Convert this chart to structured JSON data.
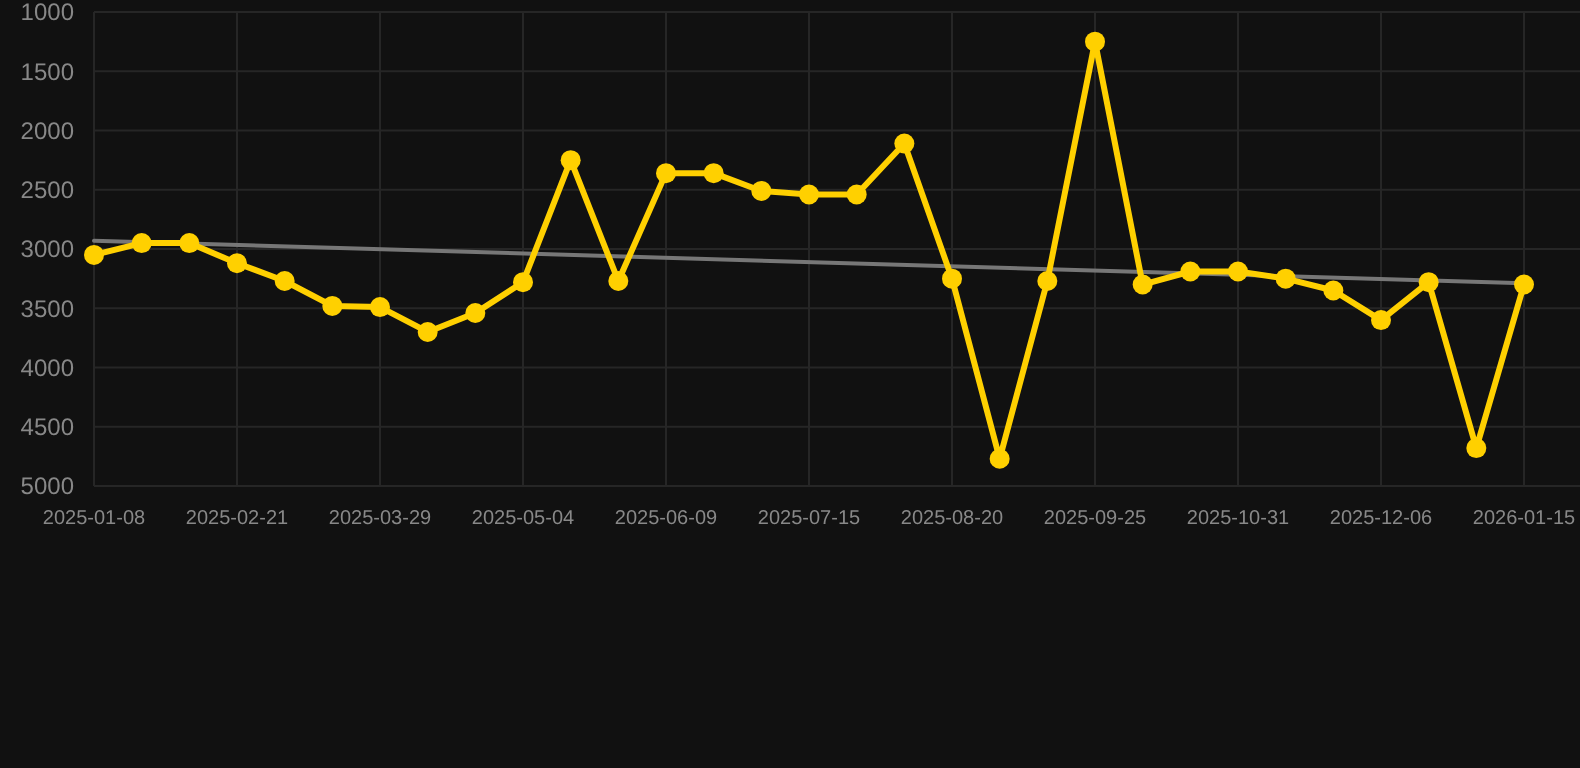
{
  "chart_data": {
    "type": "line",
    "categories": [
      "2025-01-08",
      null,
      null,
      "2025-02-21",
      null,
      null,
      "2025-03-29",
      null,
      null,
      "2025-05-04",
      null,
      null,
      "2025-06-09",
      null,
      null,
      "2025-07-15",
      null,
      null,
      "2025-08-20",
      null,
      null,
      "2025-09-25",
      null,
      null,
      "2025-10-31",
      null,
      null,
      "2025-12-06",
      null,
      null,
      "2026-01-15"
    ],
    "series": [
      {
        "color": "#ffd000",
        "marker": "circle",
        "values": [
          3050,
          2950,
          2950,
          3120,
          3270,
          3480,
          3490,
          3700,
          3540,
          3280,
          2250,
          3270,
          2360,
          2360,
          2510,
          2540,
          2540,
          2110,
          3250,
          4770,
          3270,
          1250,
          3300,
          3190,
          3190,
          3250,
          3350,
          3600,
          3280,
          4680,
          3300
        ]
      },
      {
        "color": "#777777",
        "marker": "none",
        "values": [
          2930,
          null,
          null,
          null,
          null,
          null,
          null,
          null,
          null,
          null,
          null,
          null,
          null,
          null,
          null,
          null,
          null,
          null,
          null,
          null,
          null,
          null,
          null,
          null,
          null,
          null,
          null,
          null,
          null,
          null,
          3290
        ]
      }
    ],
    "ylim": [
      5000,
      1000
    ],
    "yticks": [
      1000,
      1500,
      2000,
      2500,
      3000,
      3500,
      4000,
      4500,
      5000
    ],
    "grid": true
  }
}
